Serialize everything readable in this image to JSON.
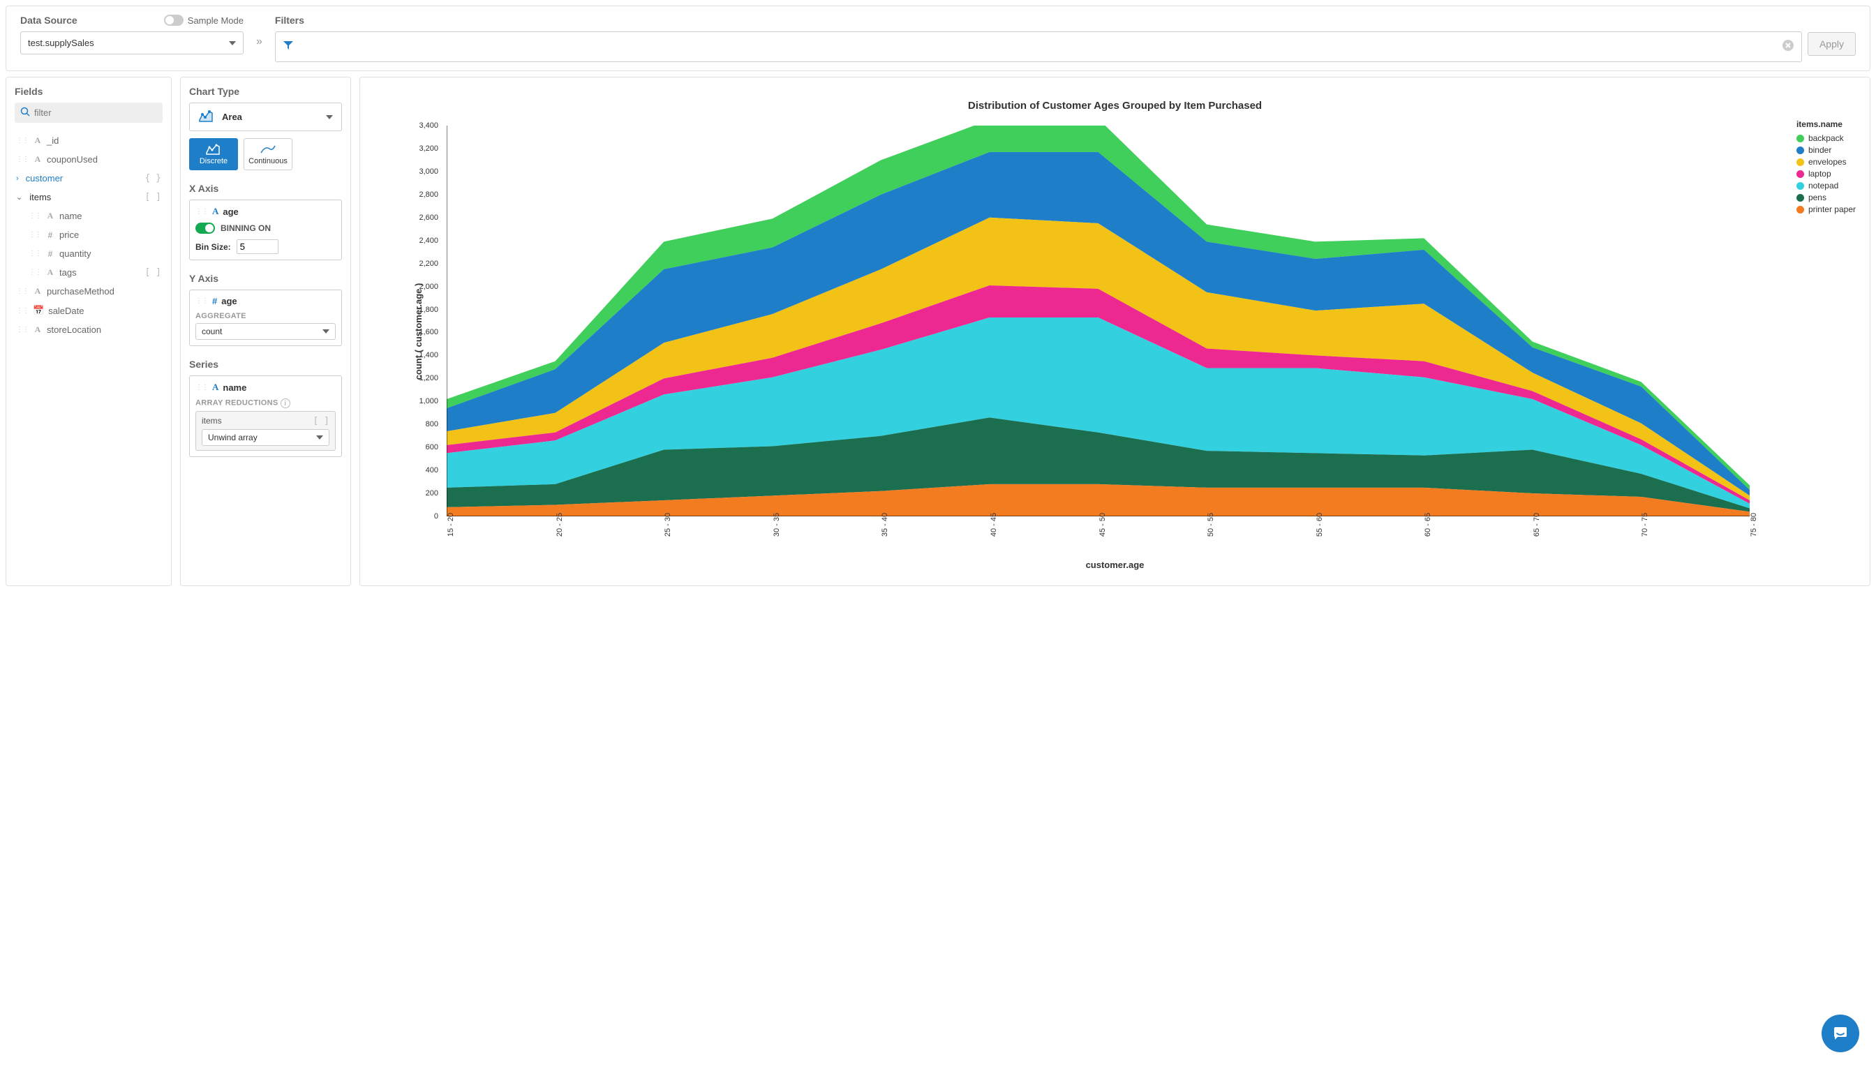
{
  "topbar": {
    "dataSourceLabel": "Data Source",
    "sampleModeLabel": "Sample Mode",
    "sampleModeOn": false,
    "dataSourceValue": "test.supplySales",
    "filtersLabel": "Filters",
    "applyLabel": "Apply"
  },
  "fieldsPanel": {
    "title": "Fields",
    "filterPlaceholder": "filter",
    "fields": [
      {
        "type": "A",
        "name": "_id"
      },
      {
        "type": "A",
        "name": "couponUsed"
      },
      {
        "type": "obj",
        "name": "customer",
        "expanded": false
      },
      {
        "type": "arr",
        "name": "items",
        "expanded": true,
        "children": [
          {
            "type": "A",
            "name": "name"
          },
          {
            "type": "#",
            "name": "price"
          },
          {
            "type": "#",
            "name": "quantity"
          },
          {
            "type": "A",
            "name": "tags",
            "isArr": true
          }
        ]
      },
      {
        "type": "A",
        "name": "purchaseMethod"
      },
      {
        "type": "date",
        "name": "saleDate"
      },
      {
        "type": "A",
        "name": "storeLocation"
      }
    ]
  },
  "encodePanel": {
    "chartTypeLabel": "Chart Type",
    "chartTypeValue": "Area",
    "modes": {
      "discrete": "Discrete",
      "continuous": "Continuous",
      "active": "discrete"
    },
    "xAxis": {
      "label": "X Axis",
      "fieldType": "A",
      "fieldName": "age",
      "binningOn": true,
      "binningLabel": "BINNING ON",
      "binSizeLabel": "Bin Size:",
      "binSizeValue": "5"
    },
    "yAxis": {
      "label": "Y Axis",
      "fieldType": "#",
      "fieldName": "age",
      "aggregateLabel": "AGGREGATE",
      "aggregateValue": "count"
    },
    "series": {
      "label": "Series",
      "fieldType": "A",
      "fieldName": "name",
      "arrayReductionsLabel": "ARRAY REDUCTIONS",
      "arrayField": "items",
      "reductionValue": "Unwind array"
    }
  },
  "chart": {
    "title": "Distribution of Customer Ages Grouped by Item Purchased",
    "type": "area-stacked",
    "yAxisLabel": "count ( customer.age )",
    "xAxisLabel": "customer.age",
    "legendTitle": "items.name",
    "ylim": [
      0,
      3400
    ],
    "ytick_step": 200,
    "yticks": [
      "0",
      "200",
      "400",
      "600",
      "800",
      "1,000",
      "1,200",
      "1,400",
      "1,600",
      "1,800",
      "2,000",
      "2,200",
      "2,400",
      "2,600",
      "2,800",
      "3,000",
      "3,200",
      "3,400"
    ],
    "xCategories": [
      "15 - 20",
      "20 - 25",
      "25 - 30",
      "30 - 35",
      "35 - 40",
      "40 - 45",
      "45 - 50",
      "50 - 55",
      "55 - 60",
      "60 - 65",
      "65 - 70",
      "70 - 75",
      "75 - 80"
    ],
    "series": [
      {
        "name": "printer paper",
        "color": "#f47c20",
        "values": [
          80,
          100,
          140,
          180,
          220,
          280,
          280,
          250,
          250,
          250,
          200,
          170,
          40
        ]
      },
      {
        "name": "pens",
        "color": "#1b6e4e",
        "values": [
          170,
          180,
          440,
          430,
          480,
          580,
          450,
          320,
          300,
          280,
          380,
          200,
          30
        ]
      },
      {
        "name": "notepad",
        "color": "#33d1e0",
        "values": [
          300,
          380,
          480,
          600,
          750,
          870,
          1000,
          720,
          740,
          680,
          440,
          250,
          40
        ]
      },
      {
        "name": "laptop",
        "color": "#ed2890",
        "values": [
          70,
          70,
          140,
          170,
          230,
          280,
          250,
          170,
          110,
          140,
          70,
          50,
          30
        ]
      },
      {
        "name": "envelopes",
        "color": "#f2c316",
        "values": [
          120,
          170,
          310,
          380,
          470,
          590,
          570,
          490,
          390,
          500,
          160,
          140,
          40
        ]
      },
      {
        "name": "binder",
        "color": "#1e7ec8",
        "values": [
          200,
          380,
          640,
          580,
          650,
          570,
          620,
          440,
          450,
          470,
          220,
          320,
          50
        ]
      },
      {
        "name": "backpack",
        "color": "#3fcf5a",
        "values": [
          80,
          70,
          240,
          250,
          300,
          280,
          290,
          150,
          150,
          100,
          50,
          40,
          40
        ]
      }
    ],
    "background_color": "#ffffff",
    "axis_color": "#000000",
    "tick_fontsize": 11,
    "label_fontsize": 13,
    "title_fontsize": 15
  }
}
